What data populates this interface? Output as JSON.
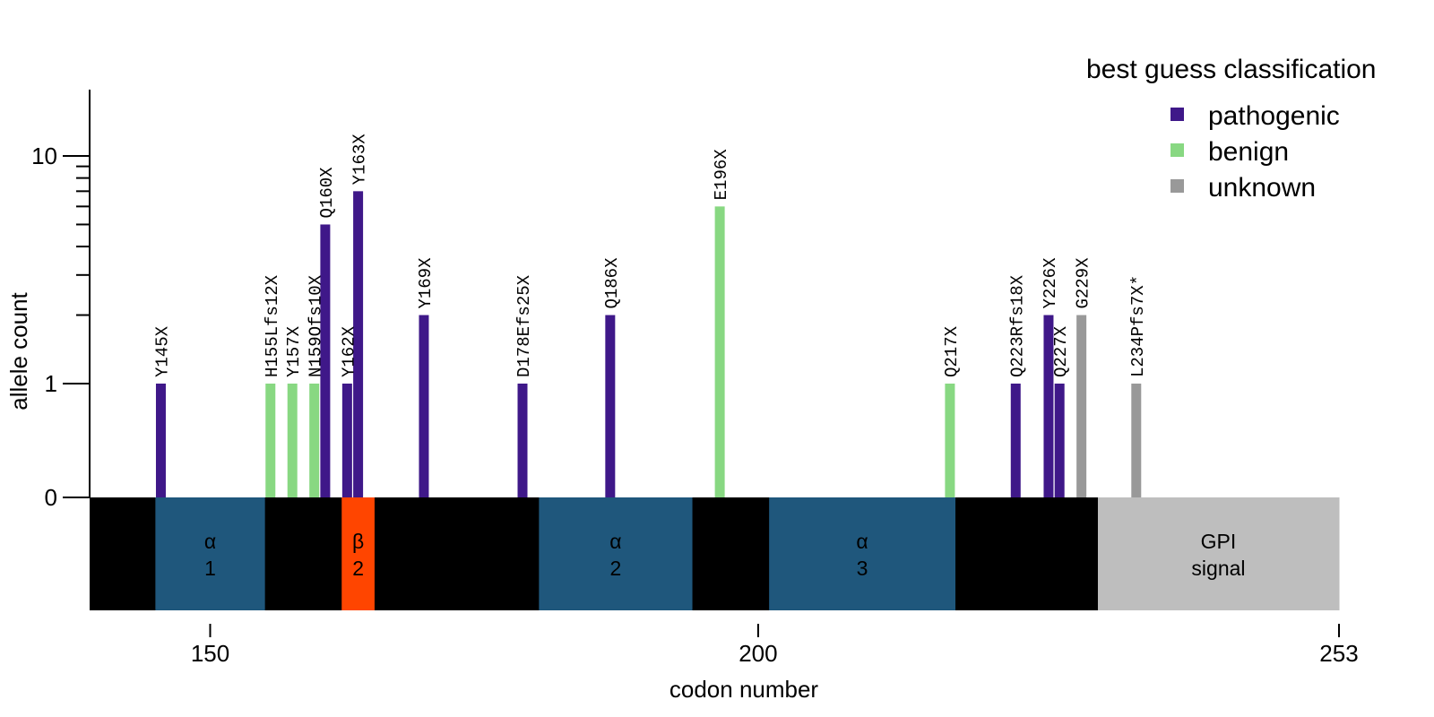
{
  "chart_data": {
    "type": "bar",
    "xlabel": "codon number",
    "ylabel": "allele count",
    "x_domain": [
      139,
      253
    ],
    "x_ticks": [
      150,
      200,
      253
    ],
    "y_scale": "log1p",
    "y_ticks": [
      0,
      1,
      10
    ],
    "legend": {
      "title": "best guess classification",
      "position": "top-right",
      "entries": [
        {
          "key": "pathogenic",
          "label": "pathogenic",
          "color": "#3f1889"
        },
        {
          "key": "benign",
          "label": "benign",
          "color": "#88d882"
        },
        {
          "key": "unknown",
          "label": "unknown",
          "color": "#999999"
        }
      ]
    },
    "variants": [
      {
        "label": "Y145X",
        "codon": 145,
        "count": 1,
        "class": "pathogenic"
      },
      {
        "label": "H155Lfs12X",
        "codon": 155,
        "count": 1,
        "class": "benign"
      },
      {
        "label": "Y157X",
        "codon": 157,
        "count": 1,
        "class": "benign"
      },
      {
        "label": "N159Ofs10X",
        "codon": 159,
        "count": 1,
        "class": "benign"
      },
      {
        "label": "Q160X",
        "codon": 160,
        "count": 5,
        "class": "pathogenic"
      },
      {
        "label": "Y162X",
        "codon": 162,
        "count": 1,
        "class": "pathogenic"
      },
      {
        "label": "Y163X",
        "codon": 163,
        "count": 7,
        "class": "pathogenic"
      },
      {
        "label": "Y169X",
        "codon": 169,
        "count": 2,
        "class": "pathogenic"
      },
      {
        "label": "D178Efs25X",
        "codon": 178,
        "count": 1,
        "class": "pathogenic"
      },
      {
        "label": "Q186X",
        "codon": 186,
        "count": 2,
        "class": "pathogenic"
      },
      {
        "label": "E196X",
        "codon": 196,
        "count": 6,
        "class": "benign"
      },
      {
        "label": "Q217X",
        "codon": 217,
        "count": 1,
        "class": "benign"
      },
      {
        "label": "Q223Rfs18X",
        "codon": 223,
        "count": 1,
        "class": "pathogenic"
      },
      {
        "label": "Y226X",
        "codon": 226,
        "count": 2,
        "class": "pathogenic"
      },
      {
        "label": "Q227X",
        "codon": 227,
        "count": 1,
        "class": "pathogenic"
      },
      {
        "label": "G229X",
        "codon": 229,
        "count": 2,
        "class": "unknown"
      },
      {
        "label": "L234Pfs7X*",
        "codon": 234,
        "count": 1,
        "class": "unknown"
      }
    ],
    "domains": [
      {
        "start": 139,
        "end": 145,
        "label": "",
        "color": "#000000"
      },
      {
        "start": 145,
        "end": 155,
        "label": "α\n1",
        "color": "#1f577c"
      },
      {
        "start": 155,
        "end": 162,
        "label": "",
        "color": "#000000"
      },
      {
        "start": 162,
        "end": 165,
        "label": "β\n2",
        "color": "#ff4500"
      },
      {
        "start": 165,
        "end": 180,
        "label": "",
        "color": "#000000"
      },
      {
        "start": 180,
        "end": 194,
        "label": "α\n2",
        "color": "#1f577c"
      },
      {
        "start": 194,
        "end": 201,
        "label": "",
        "color": "#000000"
      },
      {
        "start": 201,
        "end": 218,
        "label": "α\n3",
        "color": "#1f577c"
      },
      {
        "start": 218,
        "end": 231,
        "label": "",
        "color": "#000000"
      },
      {
        "start": 231,
        "end": 253,
        "label": "GPI\nsignal",
        "color": "#bebebe"
      }
    ]
  }
}
